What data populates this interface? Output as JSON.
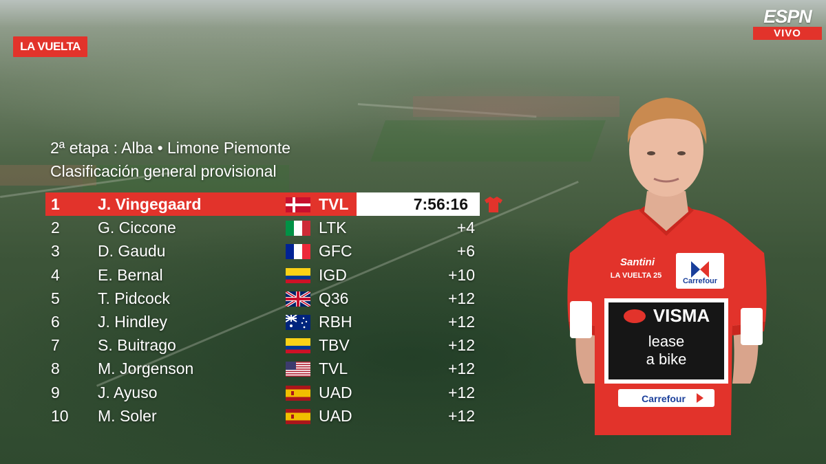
{
  "broadcast": {
    "event_logo": "LA VUELTA",
    "network_logo": "ESPN",
    "live_label": "VIVO"
  },
  "graphic": {
    "stage_title": "2ª etapa : Alba • Limone Piemonte",
    "classification_title": "Clasificación general provisional"
  },
  "standings": [
    {
      "pos": "1",
      "name": "J. Vingegaard",
      "flag": "DEN",
      "team": "TVL",
      "time": "7:56:16"
    },
    {
      "pos": "2",
      "name": "G. Ciccone",
      "flag": "ITA",
      "team": "LTK",
      "time": "+4"
    },
    {
      "pos": "3",
      "name": "D. Gaudu",
      "flag": "FRA",
      "team": "GFC",
      "time": "+6"
    },
    {
      "pos": "4",
      "name": "E. Bernal",
      "flag": "COL",
      "team": "IGD",
      "time": "+10"
    },
    {
      "pos": "5",
      "name": "T. Pidcock",
      "flag": "GBR",
      "team": "Q36",
      "time": "+12"
    },
    {
      "pos": "6",
      "name": "J. Hindley",
      "flag": "AUS",
      "team": "RBH",
      "time": "+12"
    },
    {
      "pos": "7",
      "name": "S. Buitrago",
      "flag": "COL",
      "team": "TBV",
      "time": "+12"
    },
    {
      "pos": "8",
      "name": "M. Jorgenson",
      "flag": "USA",
      "team": "TVL",
      "time": "+12"
    },
    {
      "pos": "9",
      "name": "J. Ayuso",
      "flag": "ESP",
      "team": "UAD",
      "time": "+12"
    },
    {
      "pos": "10",
      "name": "M. Soler",
      "flag": "ESP",
      "team": "UAD",
      "time": "+12"
    }
  ],
  "leader_jersey_icon": "red-jersey-icon",
  "rider_kit": {
    "brand_top": "Santini",
    "brand_vuelta": "LA VUELTA 25",
    "sponsor_chest": "Carrefour",
    "team_line1": "VISMA",
    "team_line2": "lease",
    "team_line3": "a bike",
    "sponsor_bottom": "Carrefour"
  },
  "colors": {
    "vuelta_red": "#e2332b",
    "leader_time_bg": "#ffffff",
    "text": "#ffffff"
  }
}
